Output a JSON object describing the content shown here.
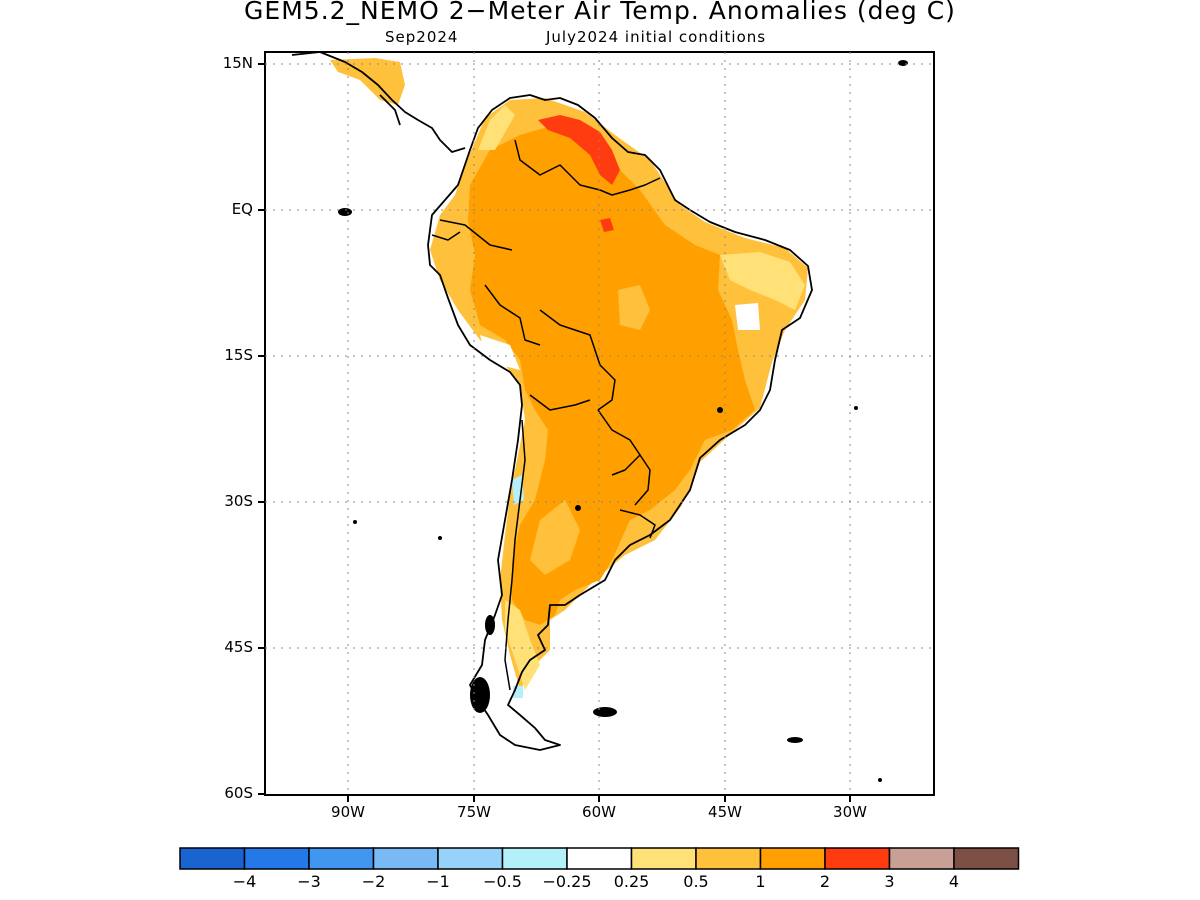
{
  "title": "GEM5.2_NEMO 2−Meter Air Temp. Anomalies (deg C)",
  "subtitle_left": "Sep2024",
  "subtitle_right": "July2024 initial conditions",
  "lat_labels": [
    "15N",
    "EQ",
    "15S",
    "30S",
    "45S",
    "60S"
  ],
  "lon_labels": [
    "90W",
    "75W",
    "60W",
    "45W",
    "30W"
  ],
  "colorbar": {
    "colors": [
      "#1a64d2",
      "#2478e8",
      "#4196f0",
      "#78b9f6",
      "#96d2fa",
      "#b4f0fa",
      "#ffffff",
      "#ffe178",
      "#ffc03c",
      "#ffa000",
      "#ff3c10",
      "#c8a096",
      "#7d5046"
    ],
    "labels": [
      "−4",
      "−3",
      "−2",
      "−1",
      "−0.5",
      "−0.25",
      "0.25",
      "0.5",
      "1",
      "2",
      "3",
      "4"
    ]
  },
  "anomaly_colors": {
    "light_orange": "#ffc03c",
    "orange": "#ffa000",
    "yellow": "#ffe178",
    "red": "#ff3c10",
    "light_blue": "#b4f0fa"
  }
}
